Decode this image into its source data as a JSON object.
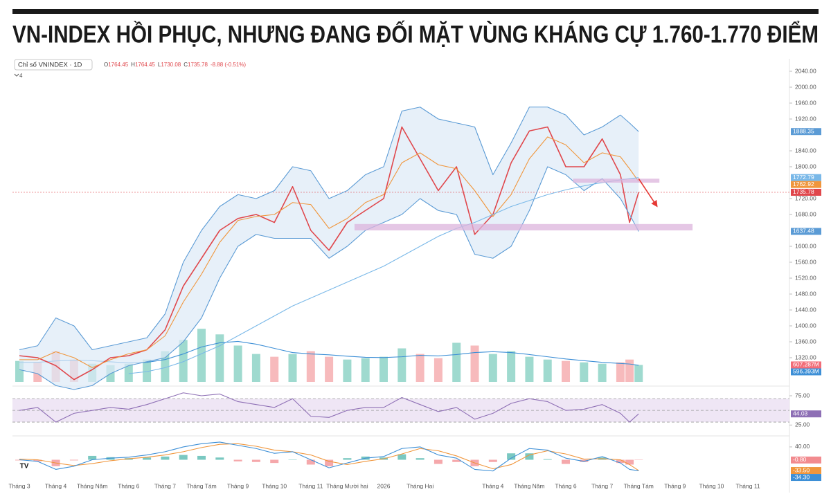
{
  "header": {
    "title": "VN-INDEX HỒI PHỤC, NHƯNG ĐANG ĐỐI MẶT VÙNG KHÁNG CỰ 1.760-1.770 ĐIỂM",
    "symbol": "Chỉ số VNINDEX · 1D",
    "ohlc": [
      {
        "label": "O",
        "value": 1764.45
      },
      {
        "label": "H",
        "value": 1764.45
      },
      {
        "label": "L",
        "value": 1730.08
      },
      {
        "label": "C",
        "value": 1735.78
      }
    ],
    "change": "-8.88 (-0.51%)",
    "indicators": "4"
  },
  "chart_data": [
    {
      "type": "line",
      "x": [
        0,
        0.5,
        1,
        1.5,
        2,
        2.5,
        3,
        3.5,
        4,
        4.5,
        5,
        5.5,
        6,
        6.5,
        7,
        7.5,
        8,
        8.5,
        9,
        9.5,
        10,
        10.5,
        11,
        11.5,
        12,
        12.5,
        13,
        13.5,
        14,
        14.5,
        15,
        15.5,
        16,
        16.5,
        16.75,
        17
      ],
      "xlim": [
        -0.19,
        21.14
      ],
      "ylim": [
        1240,
        2060
      ],
      "yticks": [
        {
          "value": 2040,
          "label": "2040.00"
        },
        {
          "value": 2000,
          "label": "2000.00"
        },
        {
          "value": 1960,
          "label": "1960.00"
        },
        {
          "value": 1920,
          "label": "1920.00"
        },
        {
          "value": 1840,
          "label": "1840.00"
        },
        {
          "value": 1800,
          "label": "1800.00"
        },
        {
          "value": 1720,
          "label": "1720.00"
        },
        {
          "value": 1680,
          "label": "1680.00"
        },
        {
          "value": 1600,
          "label": "1600.00"
        },
        {
          "value": 1560,
          "label": "1560.00"
        },
        {
          "value": 1520,
          "label": "1520.00"
        },
        {
          "value": 1480,
          "label": "1480.00"
        },
        {
          "value": 1440,
          "label": "1440.00"
        },
        {
          "value": 1400,
          "label": "1400.00"
        },
        {
          "value": 1360,
          "label": "1360.00"
        },
        {
          "value": 1320,
          "label": "1320.00"
        }
      ],
      "series": [
        {
          "color": "#e0474c",
          "price_line": true,
          "values": [
            1325,
            1320,
            1300,
            1265,
            1290,
            1320,
            1325,
            1340,
            1390,
            1500,
            1570,
            1640,
            1670,
            1680,
            1660,
            1750,
            1640,
            1590,
            1660,
            1690,
            1720,
            1900,
            1820,
            1740,
            1800,
            1630,
            1680,
            1810,
            1890,
            1900,
            1800,
            1800,
            1870,
            1780,
            1660,
            1735.78
          ]
        },
        {
          "color": "#5b9bd5",
          "fill": "#dde9f7",
          "values": [
            1340,
            1350,
            1420,
            1400,
            1340,
            1350,
            1360,
            1370,
            1430,
            1560,
            1640,
            1700,
            1730,
            1720,
            1740,
            1800,
            1790,
            1720,
            1740,
            1780,
            1800,
            1940,
            1950,
            1920,
            1910,
            1900,
            1780,
            1860,
            1950,
            1950,
            1930,
            1880,
            1900,
            1930,
            1910,
            1888.35
          ]
        },
        {
          "color": "#5b9bd5",
          "values": [
            1290,
            1280,
            1250,
            1240,
            1250,
            1280,
            1300,
            1310,
            1320,
            1360,
            1420,
            1520,
            1600,
            1630,
            1620,
            1620,
            1620,
            1570,
            1600,
            1640,
            1660,
            1680,
            1720,
            1690,
            1680,
            1580,
            1570,
            1600,
            1690,
            1800,
            1780,
            1740,
            1770,
            1720,
            1680,
            1637.48
          ]
        },
        {
          "color": "#f0963c",
          "values": [
            1315,
            1315,
            1335,
            1320,
            1295,
            1315,
            1330,
            1340,
            1375,
            1460,
            1530,
            1610,
            1665,
            1675,
            1680,
            1710,
            1705,
            1645,
            1670,
            1710,
            1730,
            1810,
            1835,
            1805,
            1795,
            1740,
            1675,
            1730,
            1820,
            1875,
            1855,
            1810,
            1835,
            1825,
            1795,
            1762.92
          ]
        },
        {
          "color": "#79b8e8",
          "values": [
            null,
            null,
            null,
            null,
            null,
            null,
            1280,
            1285,
            1295,
            1310,
            1330,
            1350,
            1375,
            1400,
            1425,
            1450,
            1470,
            1490,
            1510,
            1530,
            1550,
            1575,
            1600,
            1625,
            1645,
            1660,
            1680,
            1700,
            1715,
            1730,
            1742,
            1752,
            1760,
            1767,
            1770,
            1772.79
          ]
        }
      ],
      "zones": [
        {
          "x": [
            15.2,
            17.57
          ],
          "y": [
            1760,
            1770
          ],
          "color": "#dcb4dc"
        },
        {
          "x": [
            9.2,
            18.48
          ],
          "y": [
            1640,
            1656
          ],
          "color": "#dcb4dc"
        }
      ],
      "arrow": {
        "x": [
          17.0,
          17.5
        ],
        "y": [
          1770,
          1701
        ],
        "color": "#e53935"
      }
    },
    {
      "type": "bar",
      "x": [
        0,
        0.5,
        1,
        1.5,
        2,
        2.5,
        3,
        3.5,
        4,
        4.5,
        5,
        5.5,
        6,
        6.5,
        7,
        7.5,
        8,
        8.5,
        9,
        9.5,
        10,
        10.5,
        11,
        11.5,
        12,
        12.5,
        13,
        13.5,
        14,
        14.5,
        15,
        15.5,
        16,
        16.5,
        16.75,
        17
      ],
      "xlim": [
        -0.19,
        21.14
      ],
      "ylim": [
        0,
        2400
      ],
      "up_color": "#7fcdbf",
      "down_color": "#f4a3a6",
      "series": [
        {
          "color": "#f26d78",
          "last_label": "607.287M",
          "values": [
            750,
            700,
            1100,
            800,
            650,
            600,
            650,
            800,
            1100,
            1500,
            1900,
            1700,
            1300,
            1000,
            900,
            1000,
            1100,
            900,
            800,
            850,
            900,
            1200,
            1000,
            850,
            1400,
            1300,
            1000,
            1100,
            900,
            800,
            750,
            700,
            650,
            700,
            800,
            607.287
          ]
        },
        {
          "color": "#3d8fd6",
          "kind": "line",
          "last_label": "596.393M",
          "values": [
            700,
            700,
            750,
            780,
            760,
            720,
            680,
            700,
            800,
            1000,
            1250,
            1400,
            1450,
            1350,
            1200,
            1050,
            1000,
            970,
            920,
            880,
            870,
            900,
            950,
            930,
            980,
            1050,
            1080,
            1050,
            980,
            900,
            820,
            760,
            700,
            660,
            640,
            596.393
          ]
        }
      ]
    },
    {
      "type": "line",
      "x": [
        0,
        0.5,
        1,
        1.5,
        2,
        2.5,
        3,
        3.5,
        4,
        4.5,
        5,
        5.5,
        6,
        6.5,
        7,
        7.5,
        8,
        8.5,
        9,
        9.5,
        10,
        10.5,
        11,
        11.5,
        12,
        12.5,
        13,
        13.5,
        14,
        14.5,
        15,
        15.5,
        16,
        16.5,
        16.75,
        17
      ],
      "xlim": [
        -0.19,
        21.14
      ],
      "ylim": [
        10,
        88
      ],
      "yticks": [
        {
          "value": 75,
          "label": "75.00"
        },
        {
          "value": 25,
          "label": "25.00"
        }
      ],
      "levels": [
        70,
        50,
        30
      ],
      "level_fill": "#efe6f5",
      "series": [
        {
          "color": "#8e6fb5",
          "values": [
            50,
            55,
            30,
            45,
            50,
            55,
            52,
            60,
            70,
            80,
            75,
            78,
            65,
            60,
            55,
            70,
            40,
            38,
            50,
            55,
            55,
            72,
            60,
            48,
            55,
            35,
            45,
            62,
            70,
            65,
            50,
            52,
            60,
            45,
            30,
            44.03
          ]
        }
      ]
    },
    {
      "type": "line",
      "x": [
        0,
        0.5,
        1,
        1.5,
        2,
        2.5,
        3,
        3.5,
        4,
        4.5,
        5,
        5.5,
        6,
        6.5,
        7,
        7.5,
        8,
        8.5,
        9,
        9.5,
        10,
        10.5,
        11,
        11.5,
        12,
        12.5,
        13,
        13.5,
        14,
        14.5,
        15,
        15.5,
        16,
        16.5,
        16.75,
        17
      ],
      "xlim": [
        -0.19,
        21.14
      ],
      "ylim": [
        -70,
        70
      ],
      "yticks": [
        {
          "value": 40,
          "label": "40.00"
        }
      ],
      "up_color": "#4db6ac",
      "down_color": "#f28b8f",
      "xticks": [
        {
          "value": 0,
          "label": "Tháng 3"
        },
        {
          "value": 1,
          "label": "Tháng 4"
        },
        {
          "value": 2,
          "label": "Tháng Năm"
        },
        {
          "value": 3,
          "label": "Tháng 6"
        },
        {
          "value": 4,
          "label": "Tháng 7"
        },
        {
          "value": 5,
          "label": "Tháng Tám"
        },
        {
          "value": 6,
          "label": "Tháng 9"
        },
        {
          "value": 7,
          "label": "Tháng 10"
        },
        {
          "value": 8,
          "label": "Tháng 11"
        },
        {
          "value": 9,
          "label": "Tháng Mười hai"
        },
        {
          "value": 10,
          "label": "2026"
        },
        {
          "value": 11,
          "label": "Tháng Hai"
        },
        {
          "value": 13,
          "label": "Tháng 4"
        },
        {
          "value": 14,
          "label": "Tháng Năm"
        },
        {
          "value": 15,
          "label": "Tháng 6"
        },
        {
          "value": 16,
          "label": "Tháng 7"
        },
        {
          "value": 17,
          "label": "Tháng Tám"
        },
        {
          "value": 18,
          "label": "Tháng 9"
        },
        {
          "value": 19,
          "label": "Tháng 10"
        },
        {
          "value": 20,
          "label": "Tháng 11"
        }
      ],
      "series": [
        {
          "color": "#f28b8f",
          "kind": "bar",
          "last_label": "-0.80",
          "values": [
            -2,
            -5,
            -20,
            -2,
            12,
            8,
            5,
            7,
            10,
            15,
            12,
            7,
            -5,
            -7,
            -10,
            0,
            -15,
            -20,
            5,
            10,
            7,
            17,
            5,
            -13,
            -7,
            -20,
            -7,
            20,
            20,
            2,
            -13,
            -7,
            7,
            -10,
            -15,
            -0.8
          ]
        },
        {
          "color": "#f0963c",
          "last_label": "-33.50",
          "values": [
            2,
            0,
            -10,
            -18,
            -12,
            -3,
            3,
            8,
            15,
            25,
            38,
            48,
            50,
            42,
            30,
            25,
            15,
            -5,
            -15,
            -5,
            3,
            18,
            35,
            28,
            12,
            -10,
            -28,
            -15,
            15,
            28,
            18,
            2,
            3,
            0,
            -15,
            -33.5
          ]
        },
        {
          "color": "#3d8fd6",
          "last_label": "-34.30",
          "values": [
            0,
            -5,
            -30,
            -20,
            0,
            5,
            8,
            15,
            25,
            40,
            50,
            55,
            45,
            35,
            20,
            25,
            0,
            -25,
            -10,
            5,
            10,
            35,
            40,
            15,
            5,
            -30,
            -35,
            5,
            35,
            30,
            5,
            -5,
            10,
            -10,
            -30,
            -34.3
          ]
        }
      ]
    }
  ]
}
